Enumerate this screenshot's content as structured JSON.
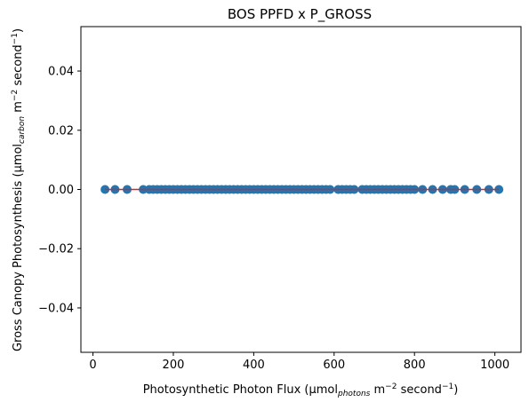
{
  "chart_data": {
    "type": "scatter",
    "title": "BOS PPFD x P_GROSS",
    "xlabel": {
      "prefix": "Photosynthetic Photon Flux (µmol",
      "sub": "photons",
      "mid": " m",
      "sup1": "−2",
      "mid2": " second",
      "sup2": "−1",
      "suffix": ")"
    },
    "ylabel": {
      "prefix": "Gross Canopy Photosynthesis (µmol",
      "sub": "carbon",
      "mid": " m",
      "sup1": "−2",
      "mid2": " second",
      "sup2": "−1",
      "suffix": ")"
    },
    "xlim": [
      -30,
      1065
    ],
    "ylim": [
      -0.055,
      0.055
    ],
    "xticks": [
      0,
      200,
      400,
      600,
      800,
      1000
    ],
    "xtick_labels": [
      "0",
      "200",
      "400",
      "600",
      "800",
      "1000"
    ],
    "yticks": [
      -0.04,
      -0.02,
      0.0,
      0.02,
      0.04
    ],
    "ytick_labels": [
      "−0.04",
      "−0.02",
      "0.00",
      "0.02",
      "0.04"
    ],
    "grid": false,
    "series": [
      {
        "marker_color": "#1f77b4",
        "x": [
          30,
          55,
          85,
          125,
          140,
          150,
          160,
          170,
          180,
          190,
          200,
          210,
          220,
          230,
          240,
          250,
          260,
          270,
          280,
          290,
          300,
          310,
          320,
          330,
          340,
          350,
          360,
          370,
          380,
          390,
          400,
          410,
          420,
          430,
          440,
          450,
          460,
          470,
          480,
          490,
          500,
          510,
          520,
          530,
          540,
          550,
          560,
          570,
          580,
          590,
          610,
          620,
          630,
          640,
          650,
          670,
          680,
          690,
          700,
          710,
          720,
          730,
          740,
          750,
          760,
          770,
          780,
          790,
          800,
          820,
          845,
          870,
          890,
          900,
          925,
          955,
          985,
          1010
        ],
        "y": [
          0,
          0,
          0,
          0,
          0,
          0,
          0,
          0,
          0,
          0,
          0,
          0,
          0,
          0,
          0,
          0,
          0,
          0,
          0,
          0,
          0,
          0,
          0,
          0,
          0,
          0,
          0,
          0,
          0,
          0,
          0,
          0,
          0,
          0,
          0,
          0,
          0,
          0,
          0,
          0,
          0,
          0,
          0,
          0,
          0,
          0,
          0,
          0,
          0,
          0,
          0,
          0,
          0,
          0,
          0,
          0,
          0,
          0,
          0,
          0,
          0,
          0,
          0,
          0,
          0,
          0,
          0,
          0,
          0,
          0,
          0,
          0,
          0,
          0,
          0,
          0,
          0,
          0
        ]
      }
    ],
    "fit_line": {
      "x": [
        30,
        1010
      ],
      "y": [
        0,
        0
      ],
      "color": "#d62728"
    }
  }
}
